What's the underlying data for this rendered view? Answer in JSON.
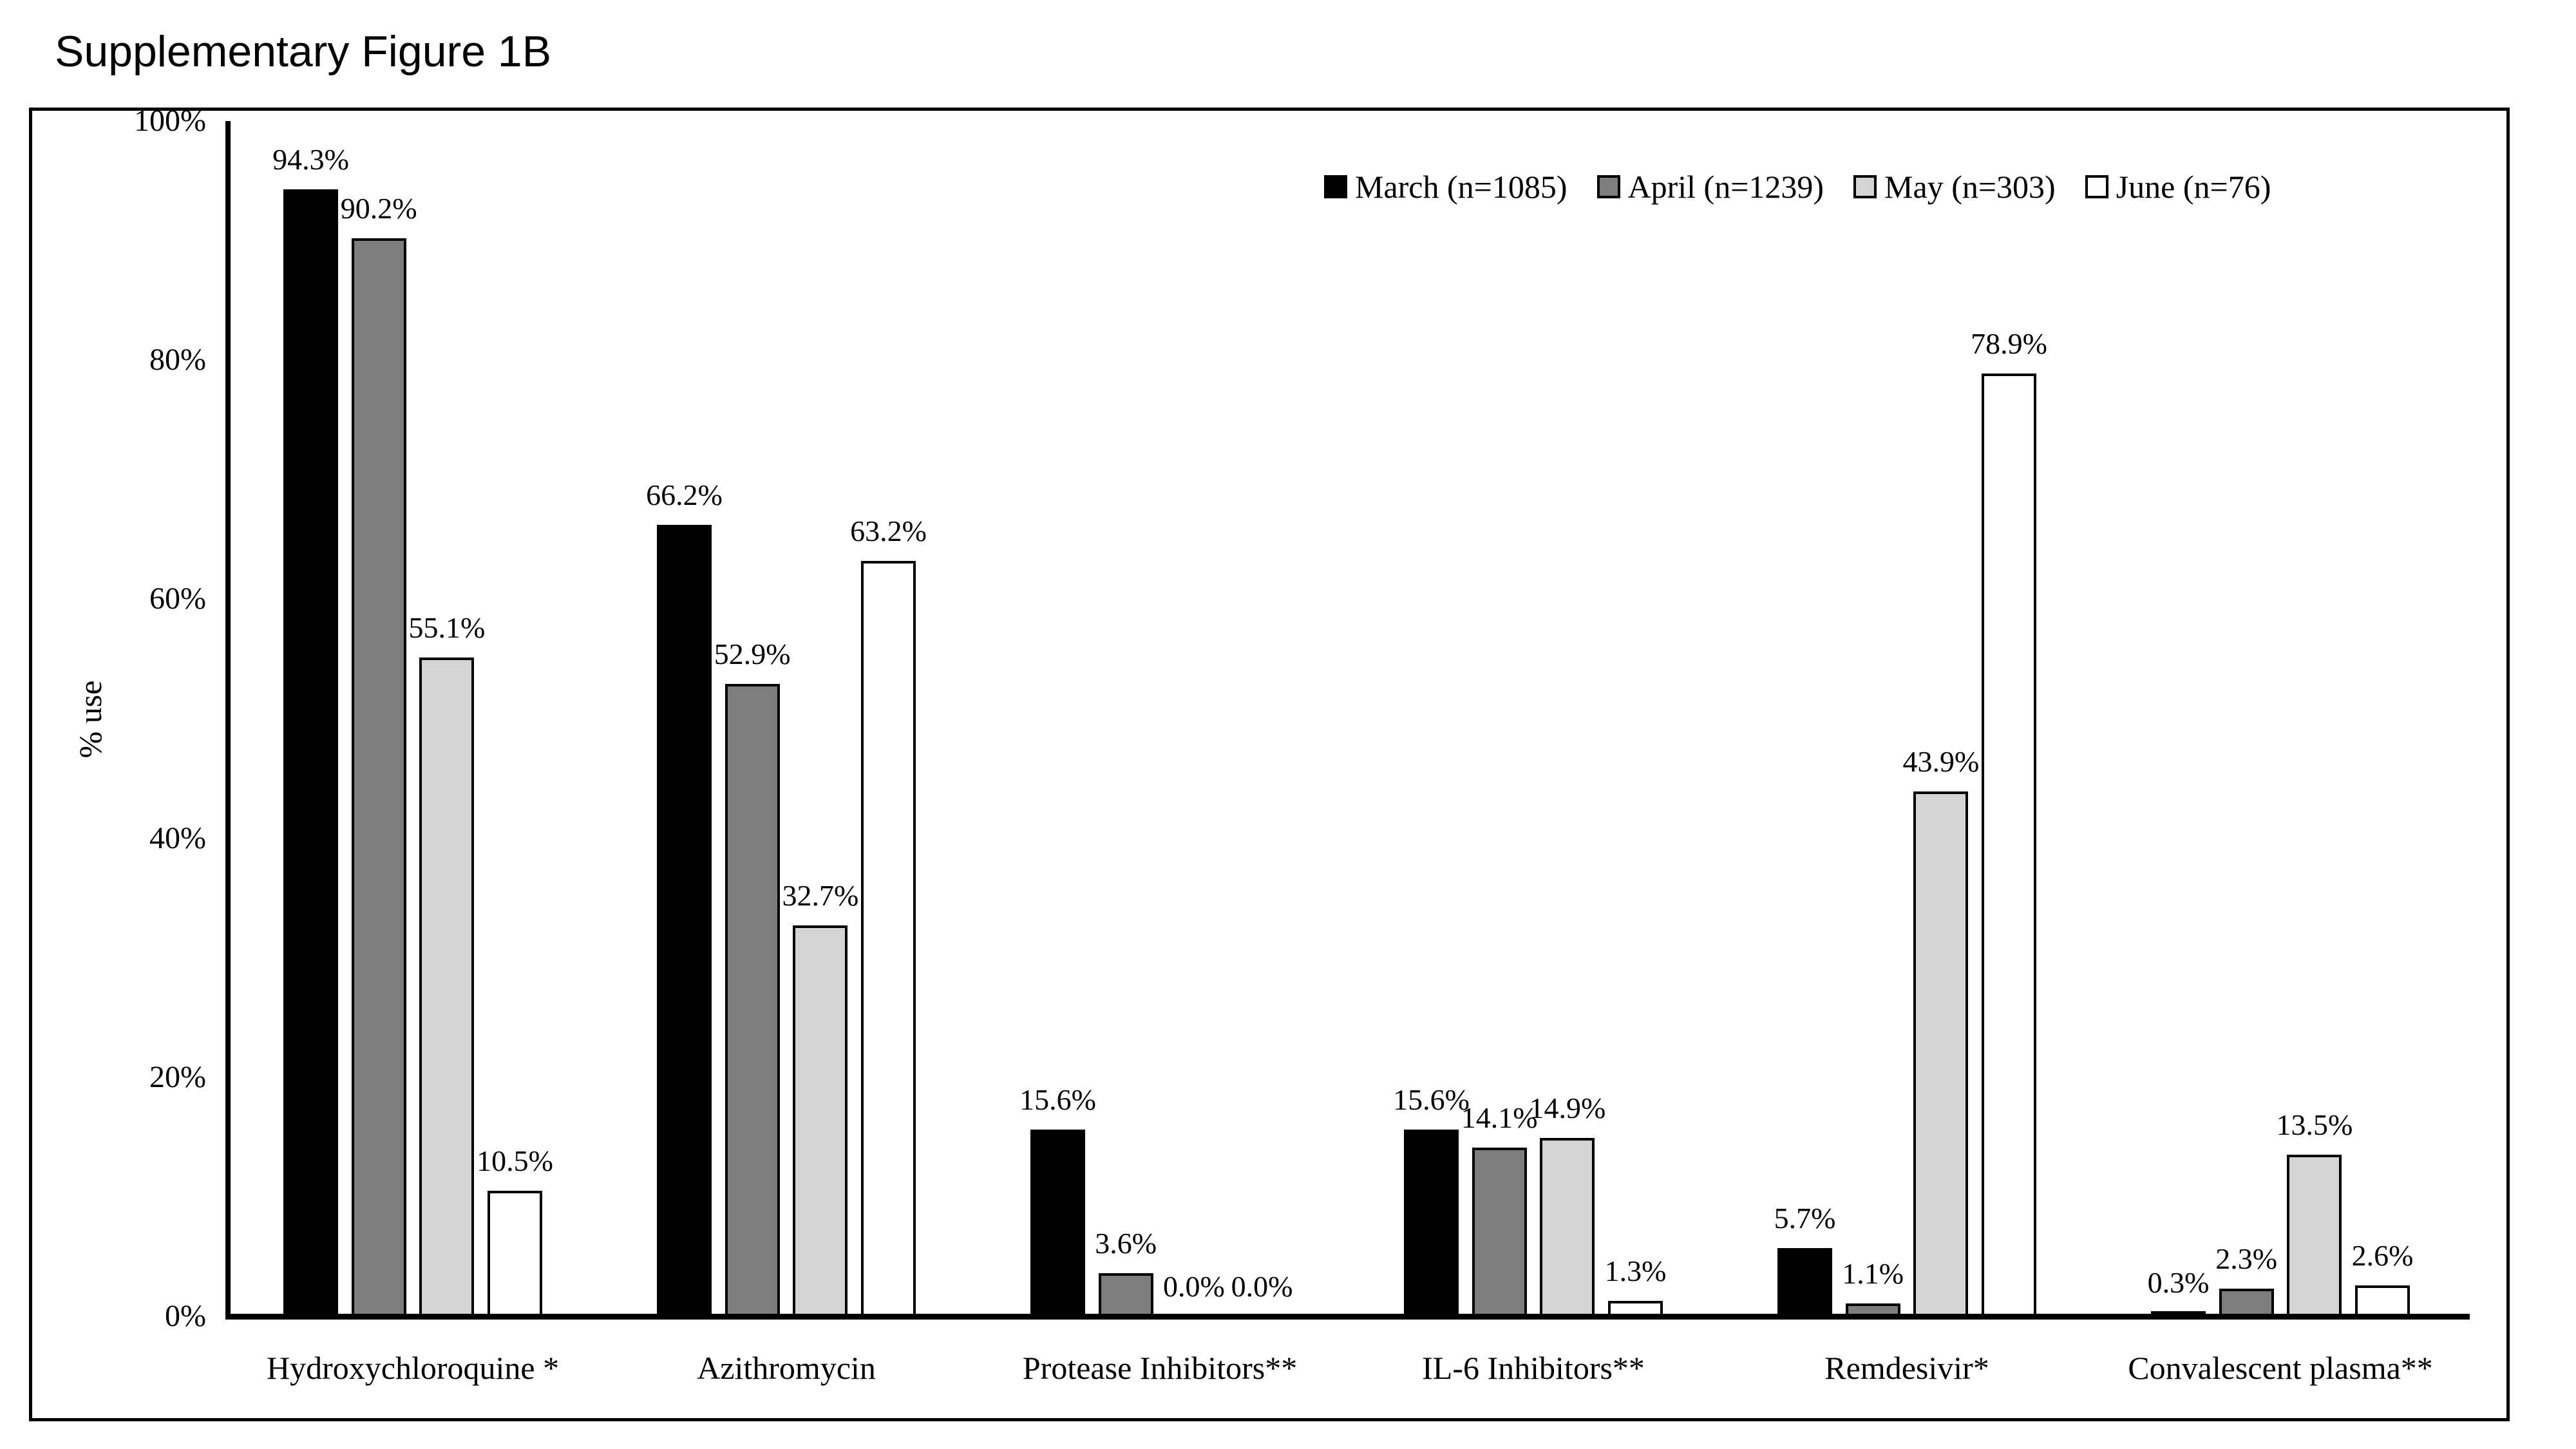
{
  "title": "Supplementary Figure 1B",
  "chart_data": {
    "type": "bar",
    "title": "Supplementary Figure 1B",
    "xlabel": "",
    "ylabel": "% use",
    "ylim": [
      0,
      100
    ],
    "ytick_labels": [
      "0%",
      "20%",
      "40%",
      "60%",
      "80%",
      "100%"
    ],
    "grid": false,
    "legend_position": "top-right-inside",
    "bar_outline_color": "#000000",
    "categories": [
      "Hydroxychloroquine *",
      "Azithromycin",
      "Protease Inhibitors**",
      "IL-6 Inhibitors**",
      "Remdesivir*",
      "Convalescent plasma**"
    ],
    "series": [
      {
        "name": "March (n=1085)",
        "color": "#000000",
        "values": [
          94.3,
          66.2,
          15.6,
          15.6,
          5.7,
          0.3
        ]
      },
      {
        "name": "April (n=1239)",
        "color": "#7D7D7D",
        "values": [
          90.2,
          52.9,
          3.6,
          14.1,
          1.1,
          2.3
        ]
      },
      {
        "name": "May (n=303)",
        "color": "#D4D4D4",
        "values": [
          55.1,
          32.7,
          0.0,
          14.9,
          43.9,
          13.5
        ]
      },
      {
        "name": "June (n=76)",
        "color": "#FFFFFF",
        "values": [
          10.5,
          63.2,
          0.0,
          1.3,
          78.9,
          2.6
        ]
      }
    ],
    "data_label_format": "one-decimal-percent"
  }
}
